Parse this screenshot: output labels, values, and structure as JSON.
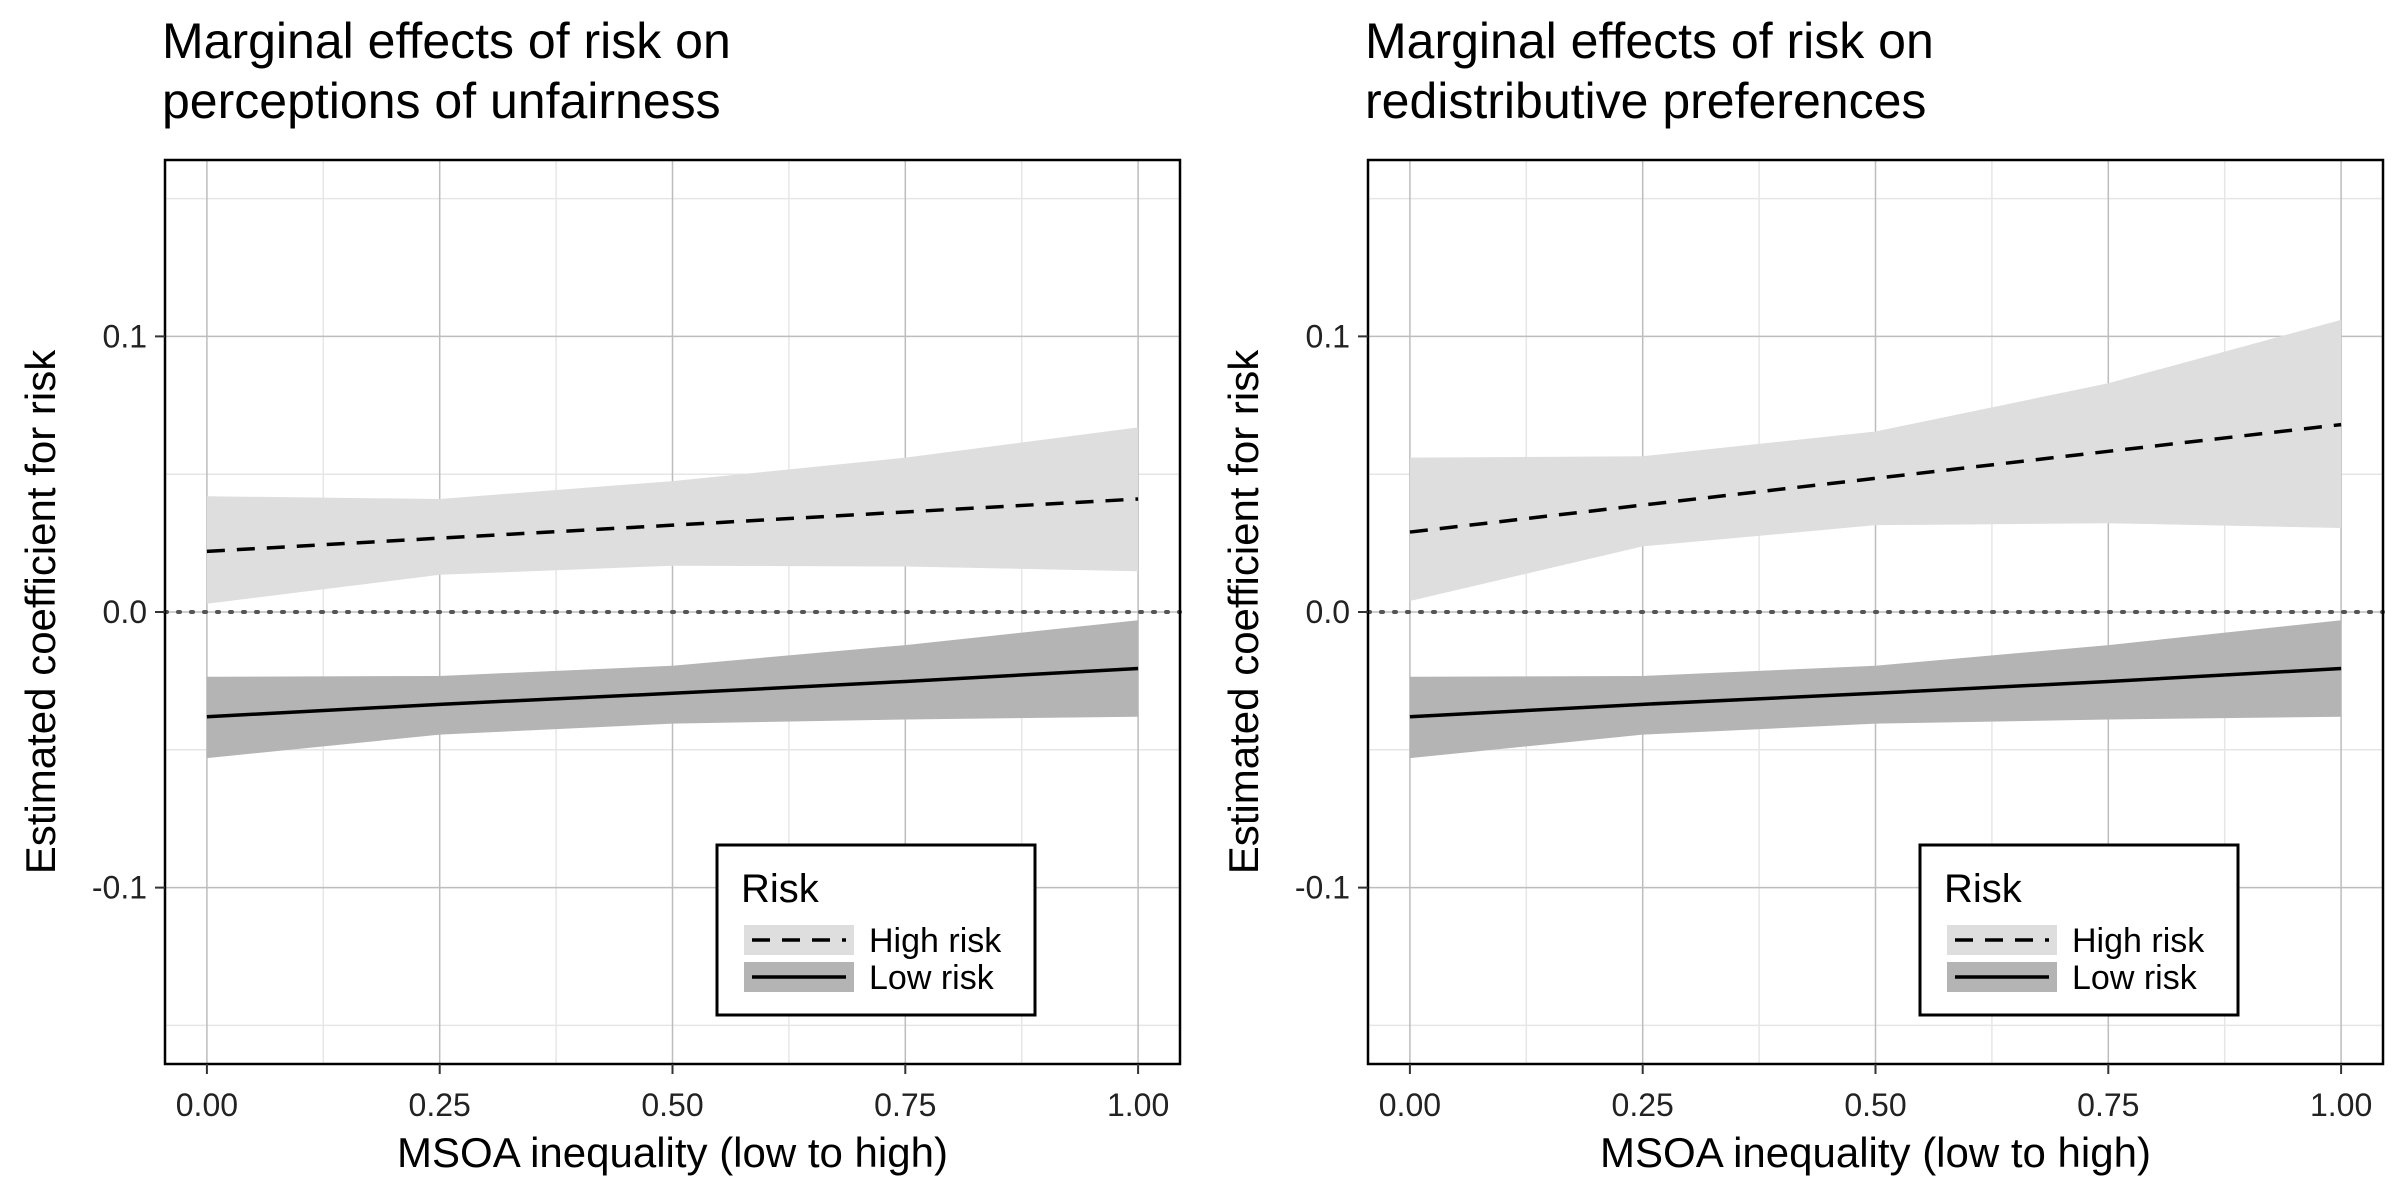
{
  "chart_data": [
    {
      "type": "line",
      "title_lines": [
        "Marginal effects of risk on",
        " perceptions of unfairness"
      ],
      "xlabel": "MSOA inequality (low to high)",
      "ylabel": "Estimated coefficient for risk",
      "xlim": [
        -0.045,
        1.045
      ],
      "ylim": [
        -0.164,
        0.164
      ],
      "x_ticks": [
        0,
        0.25,
        0.5,
        0.75,
        1
      ],
      "x_tick_labels": [
        "0.00",
        "0.25",
        "0.50",
        "0.75",
        "1.00"
      ],
      "y_ticks": [
        -0.1,
        0,
        0.1
      ],
      "y_tick_labels": [
        "-0.1",
        "0.0",
        "0.1"
      ],
      "grid": true,
      "reference_line": {
        "y": 0,
        "style": "dotted"
      },
      "legend": {
        "title": "Risk",
        "placement": "bottom-right",
        "entries": [
          "High risk",
          "Low risk"
        ]
      },
      "series": [
        {
          "name": "High risk",
          "line": "dashed",
          "band_color": "#dedede",
          "x": [
            0,
            0.25,
            0.5,
            0.75,
            1
          ],
          "y": [
            0.022,
            0.0268,
            0.0315,
            0.0363,
            0.041
          ],
          "lower": [
            0.003,
            0.0135,
            0.0168,
            0.0165,
            0.0148
          ],
          "upper": [
            0.042,
            0.041,
            0.0475,
            0.056,
            0.067
          ]
        },
        {
          "name": "Low risk",
          "line": "solid",
          "band_color": "#b4b4b4",
          "x": [
            0,
            0.25,
            0.5,
            0.75,
            1
          ],
          "y": [
            -0.038,
            -0.0335,
            -0.0295,
            -0.0252,
            -0.0205
          ],
          "lower": [
            -0.053,
            -0.0445,
            -0.0405,
            -0.039,
            -0.038
          ],
          "upper": [
            -0.0235,
            -0.0232,
            -0.0195,
            -0.012,
            -0.003
          ]
        }
      ]
    },
    {
      "type": "line",
      "title_lines": [
        "Marginal effects of risk on",
        " redistributive preferences"
      ],
      "xlabel": "MSOA inequality (low to high)",
      "ylabel": "Estimated coefficient for risk",
      "xlim": [
        -0.045,
        1.045
      ],
      "ylim": [
        -0.164,
        0.164
      ],
      "x_ticks": [
        0,
        0.25,
        0.5,
        0.75,
        1
      ],
      "x_tick_labels": [
        "0.00",
        "0.25",
        "0.50",
        "0.75",
        "1.00"
      ],
      "y_ticks": [
        -0.1,
        0,
        0.1
      ],
      "y_tick_labels": [
        "-0.1",
        "0.0",
        "0.1"
      ],
      "grid": true,
      "reference_line": {
        "y": 0,
        "style": "dotted"
      },
      "legend": {
        "title": "Risk",
        "placement": "bottom-right",
        "entries": [
          "High risk",
          "Low risk"
        ]
      },
      "series": [
        {
          "name": "High risk",
          "line": "dashed",
          "band_color": "#dedede",
          "x": [
            0,
            0.25,
            0.5,
            0.75,
            1
          ],
          "y": [
            0.029,
            0.0388,
            0.0485,
            0.0583,
            0.068
          ],
          "lower": [
            0.004,
            0.0238,
            0.0315,
            0.0322,
            0.0305
          ],
          "upper": [
            0.056,
            0.0565,
            0.0655,
            0.083,
            0.106
          ]
        },
        {
          "name": "Low risk",
          "line": "solid",
          "band_color": "#b4b4b4",
          "x": [
            0,
            0.25,
            0.5,
            0.75,
            1
          ],
          "y": [
            -0.038,
            -0.0335,
            -0.0295,
            -0.0252,
            -0.0205
          ],
          "lower": [
            -0.053,
            -0.0445,
            -0.0405,
            -0.039,
            -0.038
          ],
          "upper": [
            -0.0235,
            -0.0232,
            -0.0195,
            -0.012,
            -0.003
          ]
        }
      ]
    }
  ]
}
